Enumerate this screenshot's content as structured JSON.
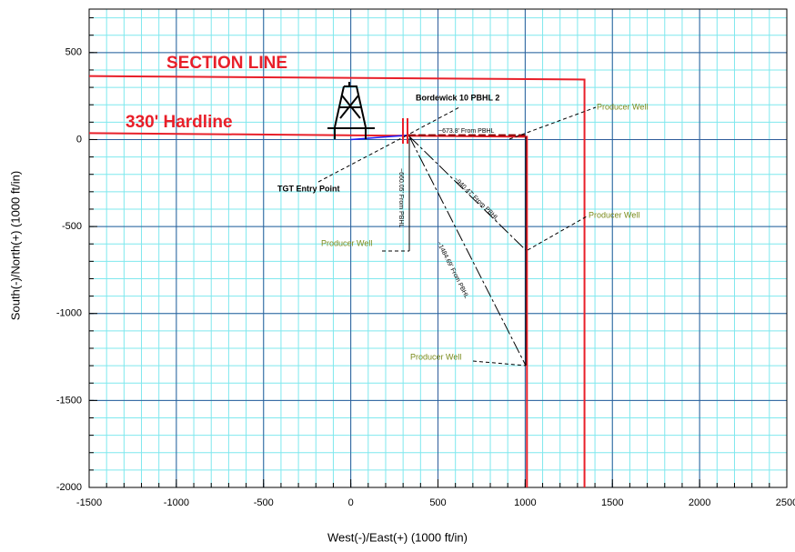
{
  "chart_data": {
    "type": "line",
    "xlabel": "West(-)/East(+) (1000 ft/in)",
    "ylabel": "South(-)/North(+) (1000 ft/in)",
    "xlim": [
      -1500,
      2500
    ],
    "ylim": [
      -2000,
      750
    ],
    "xticks": [
      -1500,
      -1000,
      -500,
      0,
      500,
      1000,
      1500,
      2000,
      2500
    ],
    "yticks": [
      -2000,
      -1500,
      -1000,
      -500,
      0,
      500
    ],
    "minor_step": 100,
    "grid": true,
    "series": [
      {
        "name": "SECTION LINE",
        "color": "#e8202a",
        "x": [
          -1500,
          1340,
          1340
        ],
        "values": [
          365,
          345,
          -2000
        ]
      },
      {
        "name": "330' Hardline",
        "color": "#e8202a",
        "x": [
          -1500,
          1010,
          1010
        ],
        "values": [
          37,
          16,
          -2000
        ]
      },
      {
        "color": "#1a1aff",
        "x": [
          0,
          330
        ],
        "values": [
          0,
          25
        ]
      },
      {
        "color": "#8b0000",
        "x": [
          330,
          1000
        ],
        "values": [
          25,
          25
        ]
      }
    ],
    "annotations": [
      "Bordewick 10 PBHL 2",
      "TGT Entry Point",
      "Producer Well",
      "Producer Well",
      "Producer Well",
      "Producer Well",
      "~673.8' From PBHL",
      "~660.05' From PBHL",
      "~940.47' From PBHL",
      "~1484.69' From PBHL"
    ]
  }
}
